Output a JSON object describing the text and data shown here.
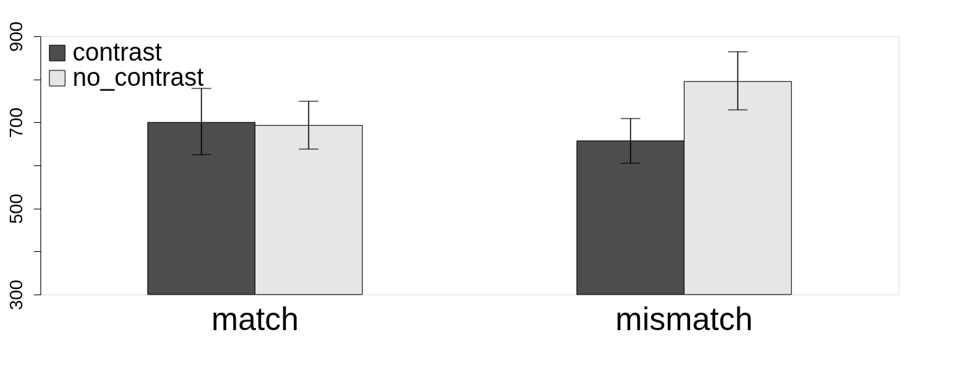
{
  "chart_data": {
    "type": "bar",
    "categories": [
      "match",
      "mismatch"
    ],
    "series": [
      {
        "name": "contrast",
        "color": "#4d4d4d",
        "values": [
          700,
          657
        ],
        "errors": [
          [
            625,
            779
          ],
          [
            605,
            709
          ]
        ]
      },
      {
        "name": "no_contrast",
        "color": "#e6e6e6",
        "values": [
          693,
          795
        ],
        "errors": [
          [
            638,
            749
          ],
          [
            729,
            864
          ]
        ]
      }
    ],
    "ylim": [
      300,
      900
    ],
    "yticks": [
      300,
      {
        "value": 400,
        "label": null
      },
      500,
      {
        "value": 600,
        "label": null
      },
      700,
      {
        "value": 800,
        "label": null
      },
      900
    ],
    "grid": false,
    "legend": "top left"
  }
}
